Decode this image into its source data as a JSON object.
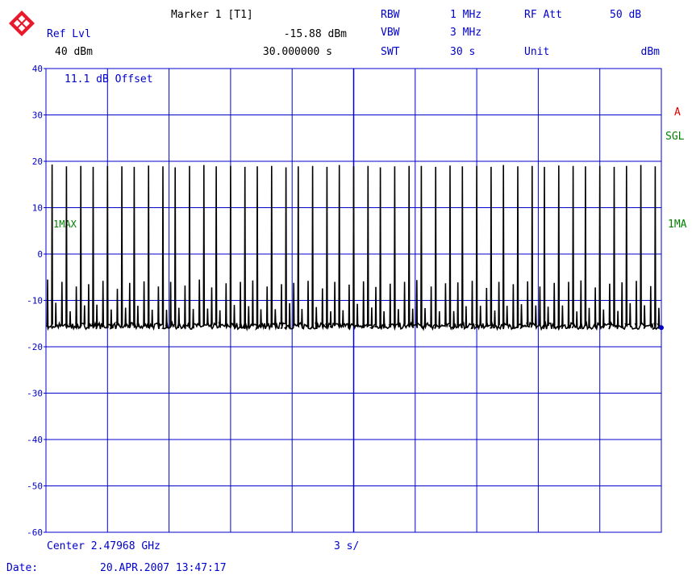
{
  "colors": {
    "blue": "#0000cc",
    "green": "#008000",
    "red": "#e00000",
    "trace": "#000000",
    "logo_red": "#e8192c"
  },
  "header": {
    "ref_lvl_label": "Ref Lvl",
    "ref_lvl_value": "40 dBm",
    "marker_label": "Marker 1 [T1]",
    "marker_level": "-15.88 dBm",
    "marker_time": "30.000000 s",
    "rbw_label": "RBW",
    "rbw_value": "1 MHz",
    "vbw_label": "VBW",
    "vbw_value": "3 MHz",
    "swt_label": "SWT",
    "swt_value": "30 s",
    "rf_att_label": "RF Att",
    "rf_att_value": "50 dB",
    "unit_label": "Unit",
    "unit_value": "dBm"
  },
  "annotations": {
    "offset": "11.1 dB Offset",
    "trace_a": "A",
    "sgl": "SGL",
    "left_1max": "1MAX",
    "right_1ma": "1MA"
  },
  "footer": {
    "center": "Center 2.47968 GHz",
    "span_per_div": "3 s/",
    "date_label": "Date:",
    "date_value": "20.APR.2007  13:47:17"
  },
  "chart_data": {
    "type": "line",
    "title": "",
    "xlabel": "",
    "ylabel": "",
    "xlim": [
      0,
      30
    ],
    "ylim": [
      -60,
      40
    ],
    "grid": true,
    "yticks": [
      "40",
      "30",
      "20",
      "10",
      "0",
      "-10",
      "-20",
      "-30",
      "-40",
      "-50",
      "-60"
    ],
    "x_unit": "s",
    "y_unit": "dBm",
    "noise_floor_dbm": -15.5,
    "marker": {
      "x": 30.0,
      "y": -15.88
    },
    "series": [
      {
        "peak_times_s": [
          0.3,
          1.0,
          1.7,
          2.3,
          3.0,
          3.7,
          4.3,
          5.0,
          5.7,
          6.3,
          7.0,
          7.7,
          8.3,
          9.0,
          9.7,
          10.3,
          11.0,
          11.7,
          12.3,
          13.0,
          13.7,
          14.3,
          15.0,
          15.7,
          16.3,
          17.0,
          17.7,
          18.3,
          19.0,
          19.7,
          20.3,
          21.0,
          21.7,
          22.3,
          23.0,
          23.7,
          24.3,
          25.0,
          25.7,
          26.3,
          27.0,
          27.7,
          28.3,
          29.0,
          29.7
        ],
        "peak_values_dbm": [
          19.3,
          18.9,
          19.0,
          18.8,
          19.0,
          18.9,
          18.8,
          19.1,
          18.9,
          18.7,
          19.0,
          19.2,
          18.9,
          19.0,
          18.8,
          18.9,
          19.0,
          18.7,
          18.9,
          19.0,
          18.8,
          19.2,
          18.9,
          19.0,
          18.7,
          18.9,
          19.0,
          19.0,
          18.8,
          19.1,
          18.9,
          19.0,
          18.8,
          19.2,
          18.9,
          19.0,
          18.8,
          19.1,
          19.0,
          18.9,
          19.0,
          18.8,
          19.0,
          19.2,
          18.9
        ],
        "sub_peak_values_dbm": [
          -5.5,
          -6.0,
          -7.0,
          -6.5,
          -5.8,
          -7.5,
          -6.2,
          -5.9,
          -7.0,
          -6.0,
          -6.8,
          -5.5,
          -7.2,
          -6.3,
          -6.0,
          -5.7,
          -7.0,
          -6.5,
          -6.2,
          -5.8,
          -7.4,
          -6.0,
          -6.6,
          -5.9,
          -7.1,
          -6.4,
          -6.0,
          -5.6,
          -7.0,
          -6.3,
          -6.1,
          -5.8,
          -7.3,
          -6.0,
          -6.5,
          -5.9,
          -7.0,
          -6.2,
          -6.0,
          -5.7,
          -7.2,
          -6.4,
          -6.1,
          -5.8,
          -6.9
        ]
      }
    ]
  }
}
